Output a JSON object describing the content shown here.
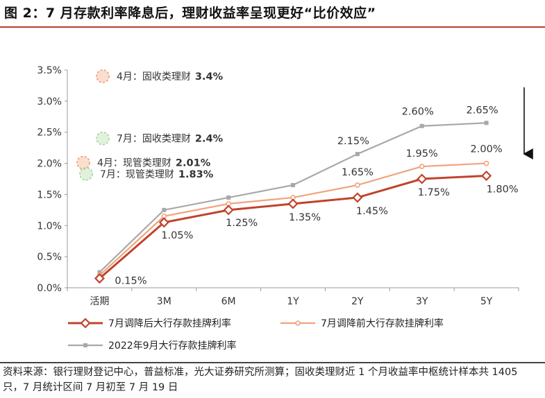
{
  "figure_title": "图 2：7 月存款利率降息后，理财收益率呈现更好“比价效应”",
  "source_note": "资料来源：银行理财登记中心，普益标准，光大证券研究所测算；固收类理财近 1 个月收益率中枢统计样本共 1405 只，7 月统计区间 7 月初至 7 月 19 日",
  "chart_data": {
    "type": "line",
    "categories": [
      "活期",
      "3M",
      "6M",
      "1Y",
      "2Y",
      "3Y",
      "5Y"
    ],
    "ylim": [
      0.0,
      0.035
    ],
    "y_ticks": [
      "0.0%",
      "0.5%",
      "1.0%",
      "1.5%",
      "2.0%",
      "2.5%",
      "3.0%",
      "3.5%"
    ],
    "grid": false,
    "legend_position": "bottom",
    "series": [
      {
        "name": "7月调降后大行存款挂牌利率",
        "color": "#c0432b",
        "marker": "diamond",
        "values": [
          0.0015,
          0.0105,
          0.0125,
          0.0135,
          0.0145,
          0.0175,
          0.018
        ],
        "labels": [
          "0.15%",
          "1.05%",
          "1.25%",
          "1.35%",
          "1.45%",
          "1.75%",
          "1.80%"
        ]
      },
      {
        "name": "7月调降前大行存款挂牌利率",
        "color": "#f2a27c",
        "marker": "circle",
        "values": [
          0.002,
          0.0115,
          0.0135,
          0.0145,
          0.0165,
          0.0195,
          0.02
        ],
        "labels": [
          "",
          "",
          "",
          "",
          "1.65%",
          "1.95%",
          "2.00%"
        ]
      },
      {
        "name": "2022年9月大行存款挂牌利率",
        "color": "#a8a8a8",
        "marker": "square",
        "values": [
          0.0025,
          0.0125,
          0.0145,
          0.0165,
          0.0215,
          0.026,
          0.0265
        ],
        "labels": [
          "",
          "",
          "",
          "",
          "2.15%",
          "2.60%",
          "2.65%"
        ]
      }
    ],
    "annotations": [
      {
        "text": "4月：固收类理财",
        "value": "3.4%",
        "y": 0.034,
        "color": "#f2a27c"
      },
      {
        "text": "7月：固收类理财",
        "value": "2.4%",
        "y": 0.024,
        "color": "#a8d8a0"
      },
      {
        "text": "4月：现管类理财",
        "value": "2.01%",
        "y": 0.0201,
        "color": "#f2a27c"
      },
      {
        "text": "7月：现管类理财",
        "value": "1.83%",
        "y": 0.0183,
        "color": "#a8d8a0"
      }
    ]
  }
}
